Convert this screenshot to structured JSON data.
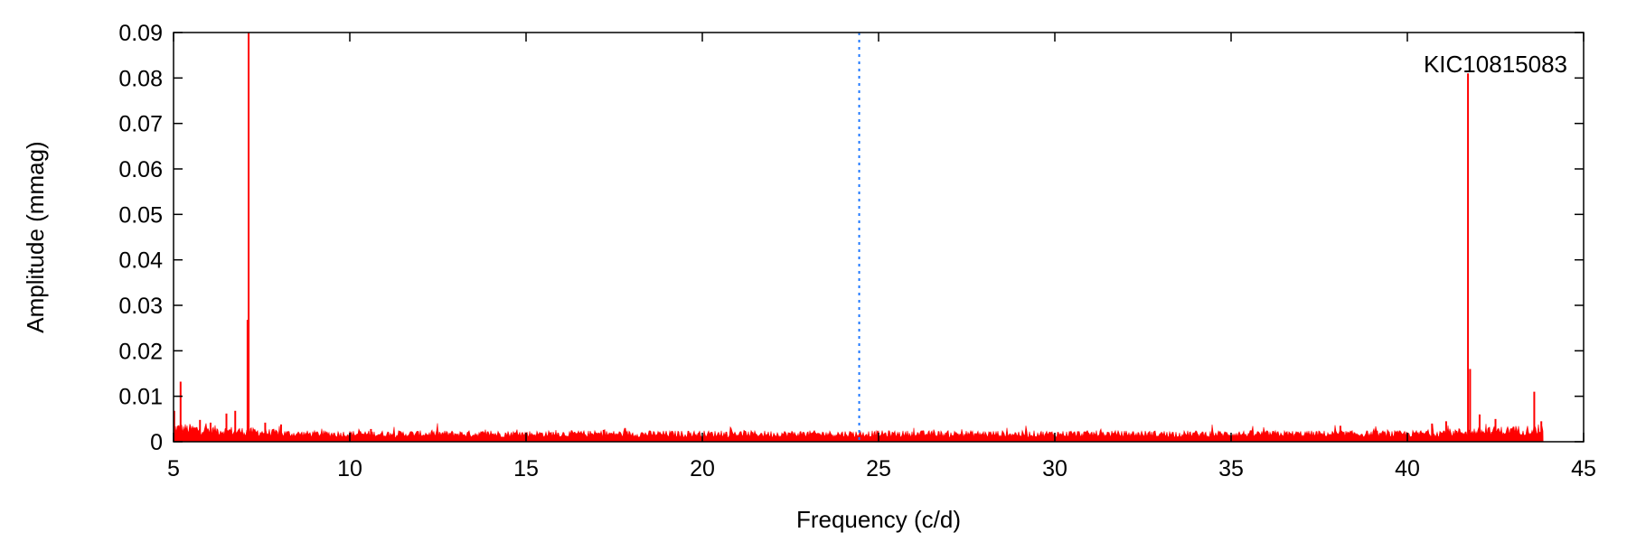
{
  "chart_data": {
    "type": "line",
    "title": "",
    "xlabel": "Frequency (c/d)",
    "ylabel": "Amplitude (mmag)",
    "xlim": [
      5,
      45
    ],
    "ylim": [
      0,
      0.09
    ],
    "x_ticks": [
      5,
      10,
      15,
      20,
      25,
      30,
      35,
      40,
      45
    ],
    "y_ticks": [
      0,
      0.01,
      0.02,
      0.03,
      0.04,
      0.05,
      0.06,
      0.07,
      0.08,
      0.09
    ],
    "x_tick_labels": [
      "5",
      "10",
      "15",
      "20",
      "25",
      "30",
      "35",
      "40",
      "45"
    ],
    "y_tick_labels": [
      "0",
      "0.01",
      "0.02",
      "0.03",
      "0.04",
      "0.05",
      "0.06",
      "0.07",
      "0.08",
      "0.09"
    ],
    "grid": false,
    "legend": "none",
    "annotation": "KIC10815083",
    "series_color": "#ff0000",
    "marker_line_color": "#1e78ff",
    "vertical_marker_x": 24.45,
    "frequency_range": [
      5.0,
      43.85
    ],
    "noise_floor": 0.0017,
    "peaks": [
      {
        "x": 5.02,
        "y": 0.0068
      },
      {
        "x": 5.2,
        "y": 0.0132
      },
      {
        "x": 5.75,
        "y": 0.0048
      },
      {
        "x": 6.05,
        "y": 0.0042
      },
      {
        "x": 6.5,
        "y": 0.0062
      },
      {
        "x": 6.75,
        "y": 0.0068
      },
      {
        "x": 7.1,
        "y": 0.0268
      },
      {
        "x": 7.13,
        "y": 0.09
      },
      {
        "x": 7.6,
        "y": 0.0042
      },
      {
        "x": 8.05,
        "y": 0.0038
      },
      {
        "x": 10.6,
        "y": 0.0028
      },
      {
        "x": 17.2,
        "y": 0.0026
      },
      {
        "x": 38.1,
        "y": 0.0035
      },
      {
        "x": 40.7,
        "y": 0.004
      },
      {
        "x": 41.1,
        "y": 0.0045
      },
      {
        "x": 41.72,
        "y": 0.081
      },
      {
        "x": 41.78,
        "y": 0.016
      },
      {
        "x": 42.05,
        "y": 0.006
      },
      {
        "x": 42.5,
        "y": 0.005
      },
      {
        "x": 43.6,
        "y": 0.011
      },
      {
        "x": 43.8,
        "y": 0.0045
      }
    ]
  }
}
